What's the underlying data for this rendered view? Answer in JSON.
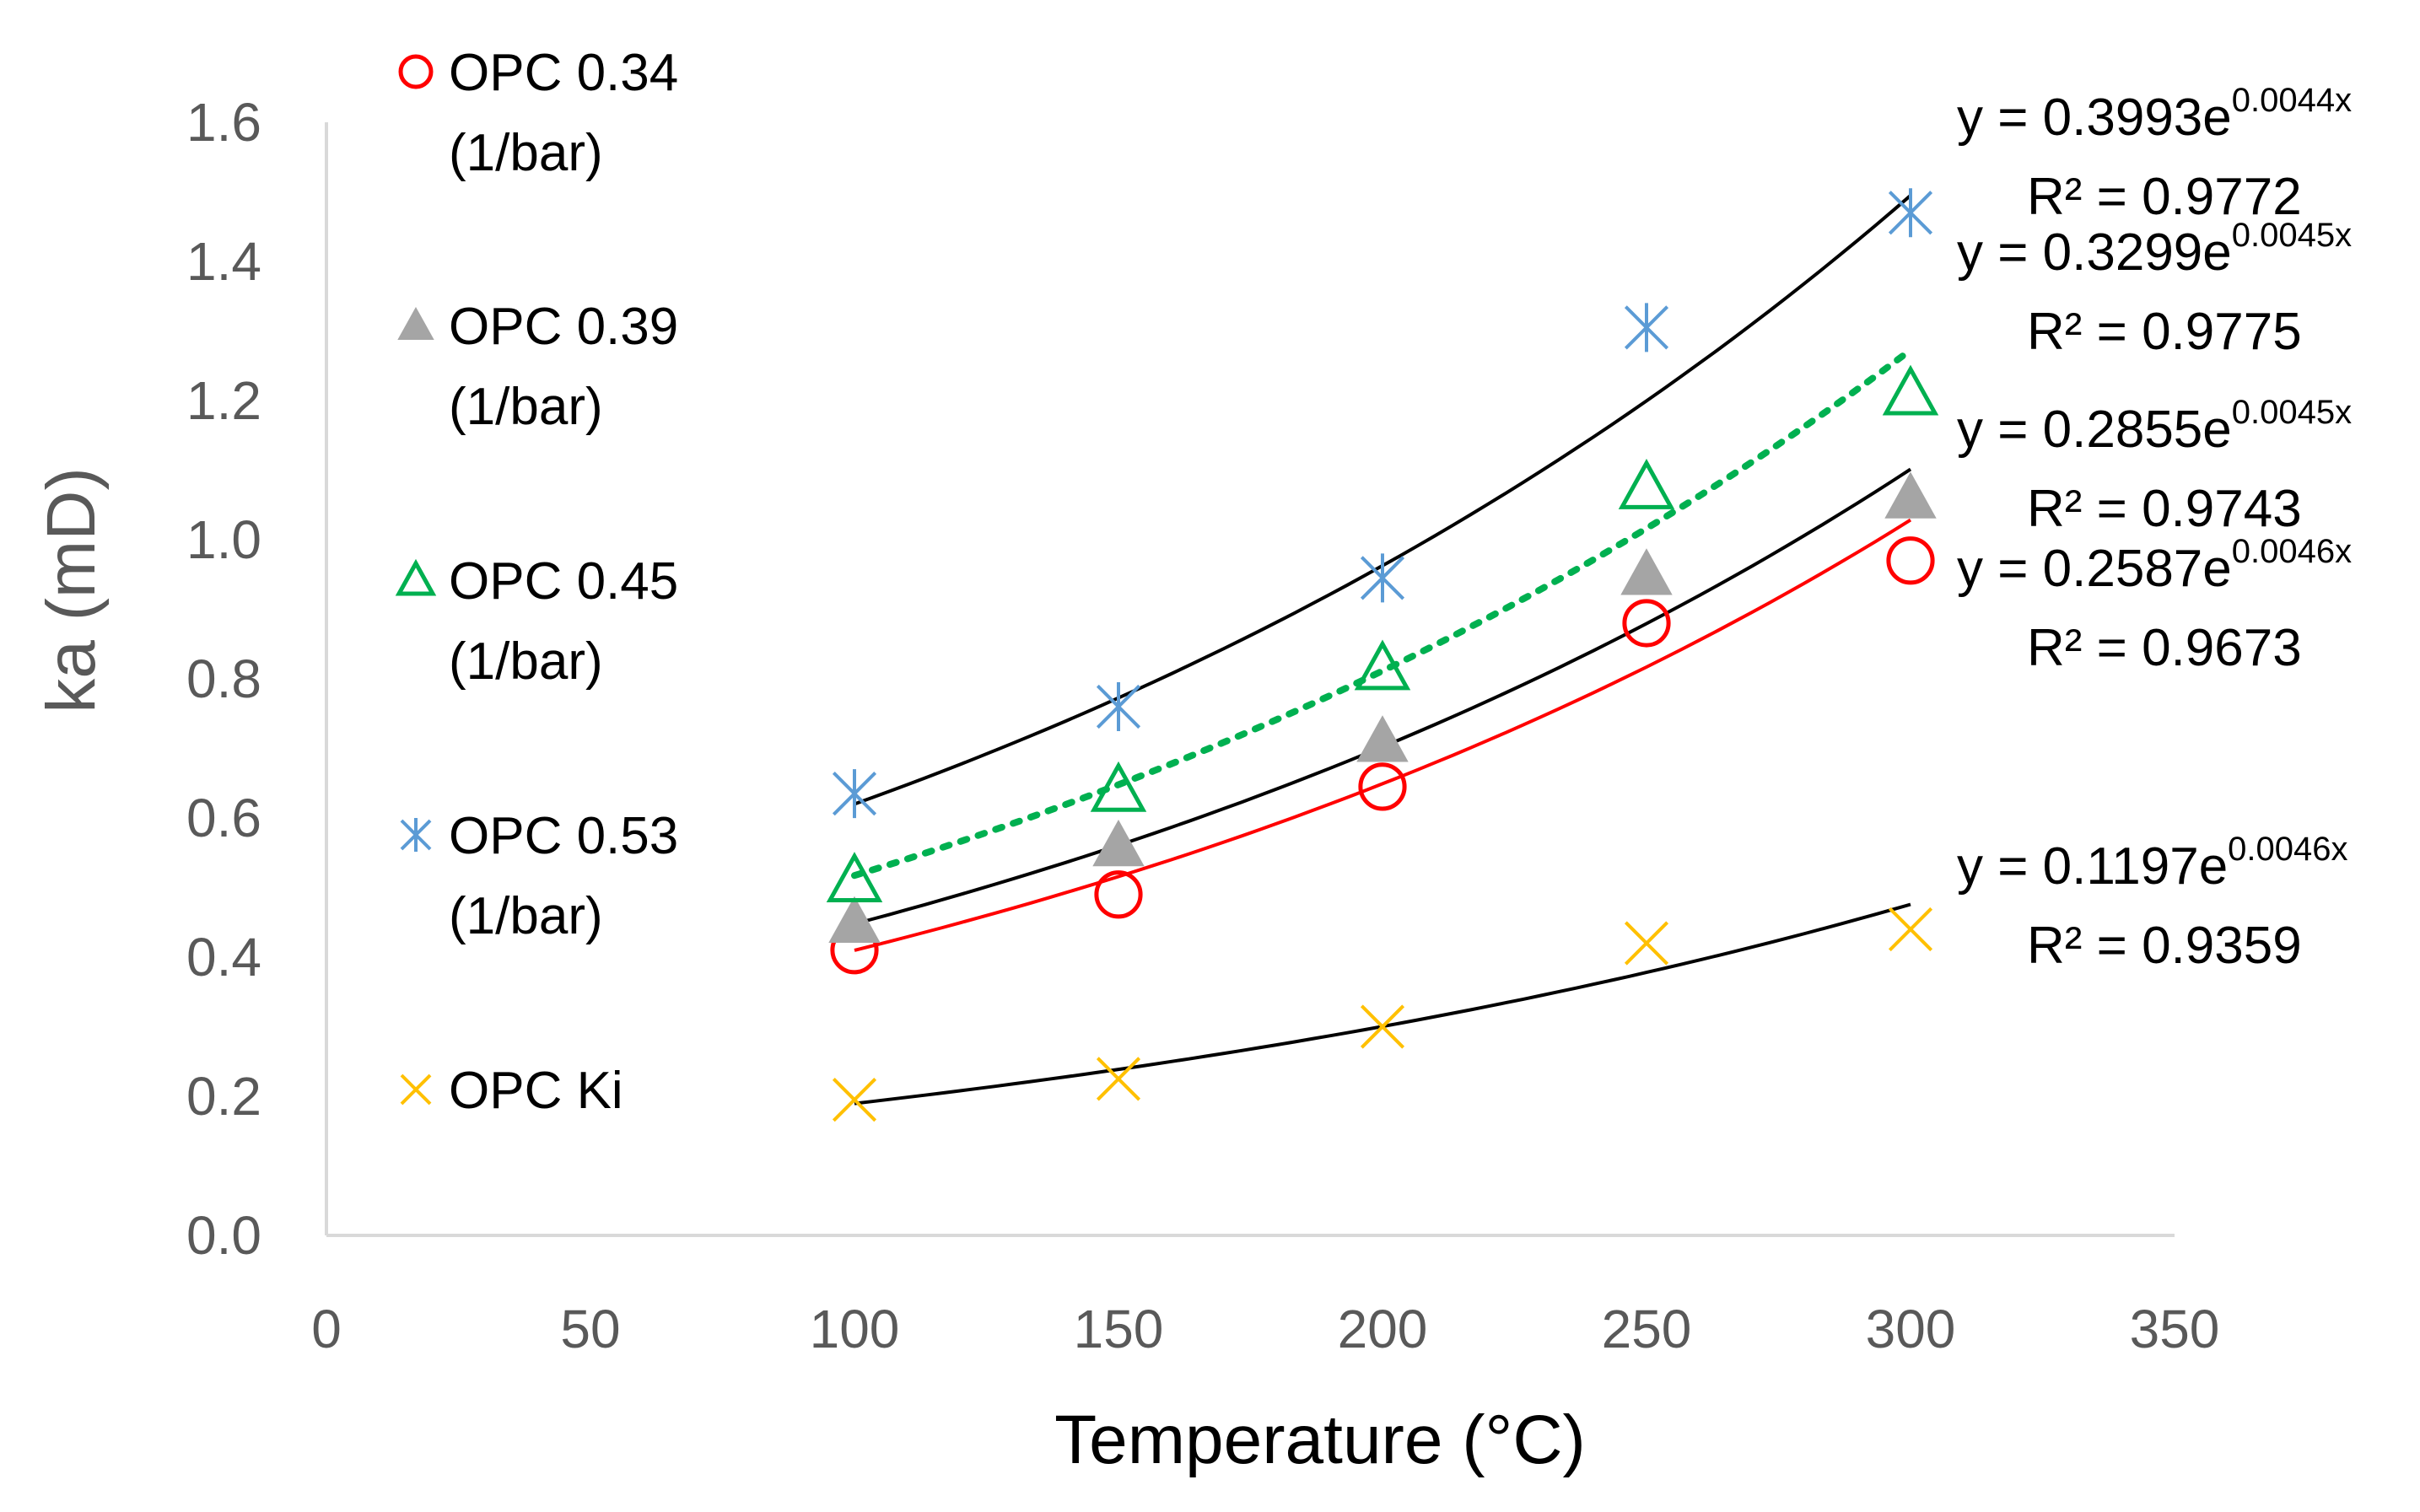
{
  "chart_data": {
    "type": "scatter",
    "title": "",
    "xlabel": "Temperature (°C)",
    "ylabel": "ka (mD)",
    "xlim": [
      0,
      350
    ],
    "ylim": [
      0,
      1.6
    ],
    "x_ticks": [
      "0",
      "50",
      "100",
      "150",
      "200",
      "250",
      "300",
      "350"
    ],
    "y_ticks": [
      "0.0",
      "0.2",
      "0.4",
      "0.6",
      "0.8",
      "1.0",
      "1.2",
      "1.4",
      "1.6"
    ],
    "grid": false,
    "legend_position": "left",
    "colors": {
      "red": "#ff0000",
      "gray": "#a5a5a5",
      "green": "#00b050",
      "blue": "#5b9bd5",
      "yellow": "#ffc000",
      "trend_black": "#000000",
      "axis": "#d9d9d9"
    },
    "series": [
      {
        "name_line1": "OPC 0.34",
        "name_line2": "(1/bar)",
        "marker": "circle",
        "color": "#ff0000",
        "x": [
          100,
          150,
          200,
          250,
          300
        ],
        "y": [
          0.41,
          0.49,
          0.645,
          0.88,
          0.97
        ],
        "trend": {
          "a": 0.2587,
          "b": 0.0046,
          "eq_base": "y = 0.2587e",
          "eq_exp": "0.0046x",
          "r2": "R² = 0.9673",
          "color": "#ff0000",
          "style": "solid"
        }
      },
      {
        "name_line1": "OPC 0.39",
        "name_line2": "(1/bar)",
        "marker": "triangle-filled",
        "color": "#a5a5a5",
        "x": [
          100,
          150,
          200,
          250,
          300
        ],
        "y": [
          0.45,
          0.56,
          0.71,
          0.95,
          1.06
        ],
        "trend": {
          "a": 0.2855,
          "b": 0.0045,
          "eq_base": "y = 0.2855e",
          "eq_exp": "0.0045x",
          "r2": "R² = 0.9743",
          "color": "#000000",
          "style": "solid"
        }
      },
      {
        "name_line1": "OPC 0.45",
        "name_line2": "(1/bar)",
        "marker": "triangle-open",
        "color": "#00b050",
        "x": [
          100,
          150,
          200,
          250,
          300
        ],
        "y": [
          0.51,
          0.64,
          0.815,
          1.075,
          1.21
        ],
        "trend": {
          "a": 0.3299,
          "b": 0.0045,
          "eq_base": "y = 0.3299e",
          "eq_exp": "0.0045x",
          "r2": "R² = 0.9775",
          "color": "#00b050",
          "style": "dotted"
        }
      },
      {
        "name_line1": "OPC 0.53",
        "name_line2": "(1/bar)",
        "marker": "asterisk",
        "color": "#5b9bd5",
        "x": [
          100,
          150,
          200,
          250,
          300
        ],
        "y": [
          0.635,
          0.76,
          0.945,
          1.305,
          1.47
        ],
        "trend": {
          "a": 0.3993,
          "b": 0.0044,
          "eq_base": "y = 0.3993e",
          "eq_exp": "0.0044x",
          "r2": "R² = 0.9772",
          "color": "#000000",
          "style": "solid"
        }
      },
      {
        "name_line1": "OPC Ki",
        "name_line2": "",
        "marker": "x",
        "color": "#ffc000",
        "x": [
          100,
          150,
          200,
          250,
          300
        ],
        "y": [
          0.195,
          0.225,
          0.3,
          0.42,
          0.44
        ],
        "trend": {
          "a": 0.1197,
          "b": 0.0046,
          "eq_base": "y = 0.1197e",
          "eq_exp": "0.0046x",
          "r2": "R² = 0.9359",
          "color": "#000000",
          "style": "solid"
        }
      }
    ]
  }
}
